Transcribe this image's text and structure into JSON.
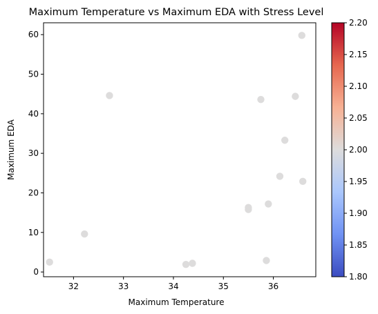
{
  "chart_data": {
    "type": "scatter",
    "title": "Maximum Temperature vs Maximum EDA with Stress Level",
    "xlabel": "Maximum Temperature",
    "ylabel": "Maximum EDA",
    "xlim": [
      31.4,
      36.85
    ],
    "ylim": [
      -1.2,
      63
    ],
    "x_ticks": [
      32,
      33,
      34,
      35,
      36
    ],
    "y_ticks": [
      0,
      10,
      20,
      30,
      40,
      50,
      60
    ],
    "grid": false,
    "point_color": "#dddcdc",
    "points": [
      {
        "x": 31.52,
        "y": 2.5
      },
      {
        "x": 32.22,
        "y": 9.6
      },
      {
        "x": 32.72,
        "y": 44.6
      },
      {
        "x": 34.25,
        "y": 1.9
      },
      {
        "x": 34.38,
        "y": 2.2
      },
      {
        "x": 35.5,
        "y": 15.8
      },
      {
        "x": 35.5,
        "y": 16.3
      },
      {
        "x": 35.75,
        "y": 43.6
      },
      {
        "x": 35.86,
        "y": 2.9
      },
      {
        "x": 35.9,
        "y": 17.2
      },
      {
        "x": 36.13,
        "y": 24.2
      },
      {
        "x": 36.23,
        "y": 33.3
      },
      {
        "x": 36.44,
        "y": 44.4
      },
      {
        "x": 36.57,
        "y": 59.8
      },
      {
        "x": 36.59,
        "y": 22.9
      }
    ],
    "colorbar": {
      "colormap": "coolwarm",
      "min": 1.8,
      "max": 2.2,
      "ticks": [
        "1.80",
        "1.85",
        "1.90",
        "1.95",
        "2.00",
        "2.05",
        "2.10",
        "2.15",
        "2.20"
      ],
      "stops": [
        "#3b4cc0",
        "#7092f3",
        "#aac7fd",
        "#dddcdc",
        "#f7b194",
        "#e6674f",
        "#b40426"
      ]
    }
  }
}
